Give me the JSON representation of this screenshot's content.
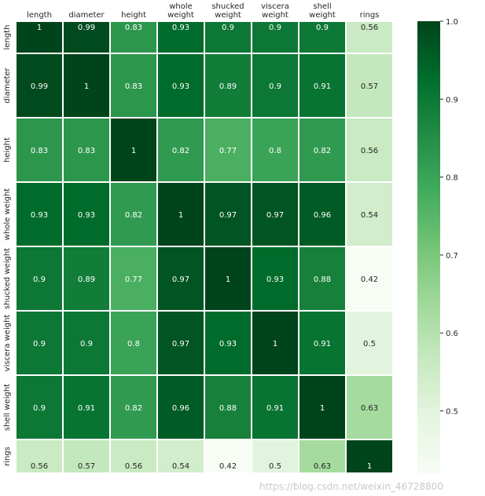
{
  "chart_data": {
    "type": "heatmap",
    "title": "",
    "labels": [
      "length",
      "diameter",
      "height",
      "whole weight",
      "shucked weight",
      "viscera weight",
      "shell weight",
      "rings"
    ],
    "values": [
      [
        1,
        0.99,
        0.83,
        0.93,
        0.9,
        0.9,
        0.9,
        0.56
      ],
      [
        0.99,
        1,
        0.83,
        0.93,
        0.89,
        0.9,
        0.91,
        0.57
      ],
      [
        0.83,
        0.83,
        1,
        0.82,
        0.77,
        0.8,
        0.82,
        0.56
      ],
      [
        0.93,
        0.93,
        0.82,
        1,
        0.97,
        0.97,
        0.96,
        0.54
      ],
      [
        0.9,
        0.89,
        0.77,
        0.97,
        1,
        0.93,
        0.88,
        0.42
      ],
      [
        0.9,
        0.9,
        0.8,
        0.97,
        0.93,
        1,
        0.91,
        0.5
      ],
      [
        0.9,
        0.91,
        0.82,
        0.96,
        0.88,
        0.91,
        1,
        0.63
      ],
      [
        0.56,
        0.57,
        0.56,
        0.54,
        0.42,
        0.5,
        0.63,
        1
      ]
    ],
    "colormap": "Greens",
    "vmin": 0.42,
    "vmax": 1.0,
    "colorbar_ticks": [
      "0.5",
      "0.6",
      "0.7",
      "0.8",
      "0.9",
      "1.0"
    ],
    "annotated": true,
    "x_labels_position": "top"
  },
  "watermark": "https://blog.csdn.net/weixin_46728800"
}
